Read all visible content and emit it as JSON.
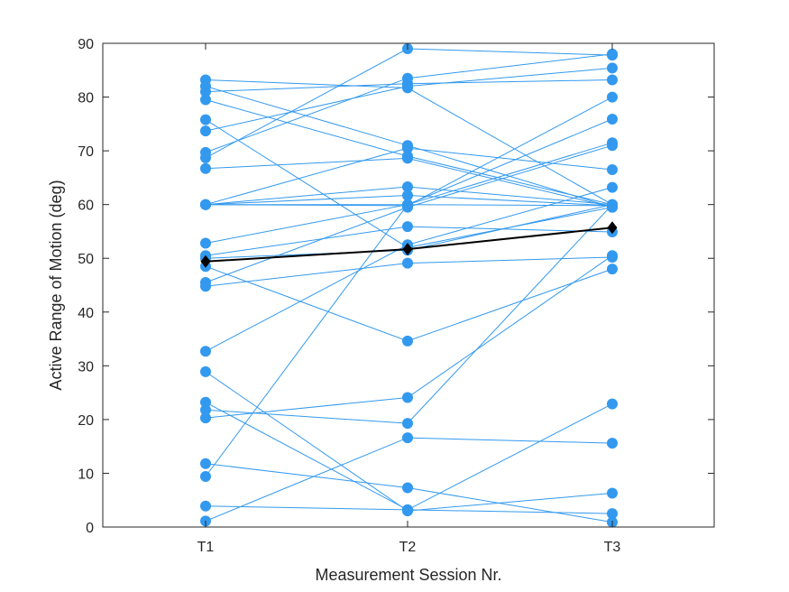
{
  "chart_data": {
    "type": "line",
    "title": "",
    "xlabel": "Measurement Session Nr.",
    "ylabel": "Active Range of Motion (deg)",
    "categories": [
      "T1",
      "T2",
      "T3"
    ],
    "ylim": [
      0,
      90
    ],
    "yticks": [
      0,
      10,
      20,
      30,
      40,
      50,
      60,
      70,
      80,
      90
    ],
    "grid": false,
    "legend": "none",
    "subject_color": "#3399ee",
    "mean_color": "#000000",
    "series": [
      {
        "values": [
          83.2,
          81.7,
          60.0
        ]
      },
      {
        "values": [
          82.0,
          71.0,
          59.5
        ]
      },
      {
        "values": [
          81.0,
          82.5,
          83.2
        ]
      },
      {
        "values": [
          79.5,
          69.0,
          60.0
        ]
      },
      {
        "values": [
          75.8,
          52.0,
          59.5
        ]
      },
      {
        "values": [
          73.7,
          82.0,
          85.4
        ]
      },
      {
        "values": [
          69.7,
          83.5,
          88.0
        ]
      },
      {
        "values": [
          68.7,
          89.0,
          87.8
        ]
      },
      {
        "values": [
          66.7,
          68.6,
          59.5
        ]
      },
      {
        "values": [
          60.0,
          63.3,
          60.0
        ]
      },
      {
        "values": [
          60.0,
          61.7,
          59.8
        ]
      },
      {
        "values": [
          60.0,
          60.0,
          59.8
        ]
      },
      {
        "values": [
          52.8,
          60.0,
          71.5
        ]
      },
      {
        "values": [
          50.5,
          55.9,
          54.9
        ]
      },
      {
        "values": [
          48.5,
          34.6,
          48.0
        ]
      },
      {
        "values": [
          45.5,
          59.5,
          71.0
        ]
      },
      {
        "values": [
          44.8,
          49.1,
          50.2
        ]
      },
      {
        "values": [
          32.7,
          52.5,
          63.2
        ]
      },
      {
        "values": [
          28.9,
          3.0,
          6.3
        ]
      },
      {
        "values": [
          23.2,
          3.2,
          2.5
        ]
      },
      {
        "values": [
          21.8,
          19.3,
          60.0
        ]
      },
      {
        "values": [
          20.3,
          24.1,
          50.5
        ]
      },
      {
        "values": [
          11.8,
          7.3,
          0.9
        ]
      },
      {
        "values": [
          9.4,
          60.0,
          75.9
        ]
      },
      {
        "values": [
          3.9,
          3.2,
          22.9
        ]
      },
      {
        "values": [
          1.1,
          16.6,
          15.6
        ]
      },
      {
        "values": [
          60.0,
          70.5,
          66.5
        ]
      },
      {
        "values": [
          60.0,
          59.8,
          80.0
        ]
      },
      {
        "values": [
          50.0,
          51.5,
          60.0
        ]
      }
    ],
    "mean": {
      "values": [
        49.4,
        51.7,
        55.7
      ]
    }
  }
}
